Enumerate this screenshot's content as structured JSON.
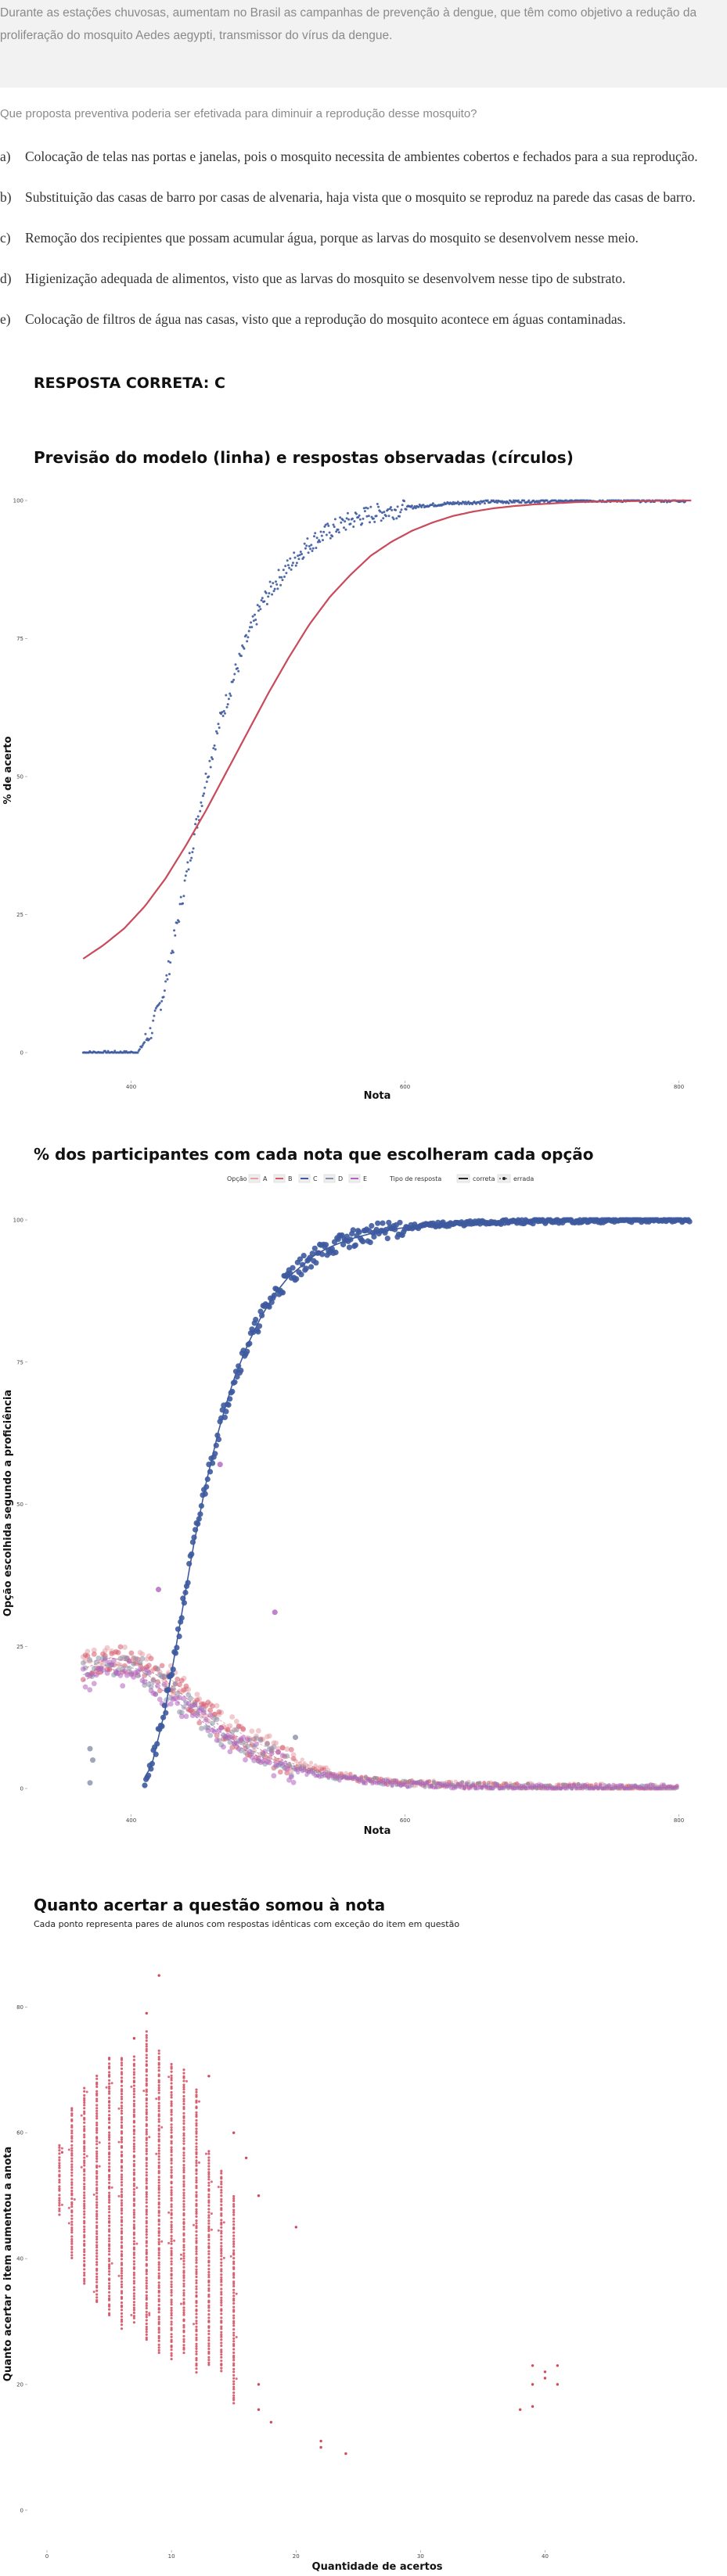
{
  "context": {
    "line1": "Durante as estações chuvosas, aumentam no Brasil as campanhas de prevenção à dengue, que têm como objetivo a redução da",
    "line2": "proliferação do mosquito Aedes aegypti, transmissor do vírus da dengue."
  },
  "question": "Que proposta preventiva poderia ser efetivada para diminuir a reprodução desse mosquito?",
  "alternatives": [
    {
      "letter": "a)",
      "text": "Colocação de telas nas portas e janelas, pois o mosquito necessita de ambientes cobertos e fechados para a sua reprodução."
    },
    {
      "letter": "b)",
      "text": "Substituição das casas de barro por casas de alvenaria, haja vista que o mosquito se reproduz na parede das casas de barro."
    },
    {
      "letter": "c)",
      "text": "Remoção dos recipientes que possam acumular água, porque as larvas do mosquito se desenvolvem nesse meio."
    },
    {
      "letter": "d)",
      "text": "Higienização adequada de alimentos, visto que as larvas do mosquito se desenvolvem nesse tipo de substrato."
    },
    {
      "letter": "e)",
      "text": "Colocação de filtros de água nas casas, visto que a reprodução do mosquito acontece em águas contaminadas."
    }
  ],
  "answer": "RESPOSTA CORRETA: C",
  "chart_data": [
    {
      "type": "scatter",
      "title": "Previsão do modelo (linha) e respostas observadas (círculos)",
      "xlabel": "Nota",
      "ylabel": "% de acerto",
      "xlim": [
        350,
        810
      ],
      "ylim": [
        0,
        100
      ],
      "xticks": [
        "400",
        "600",
        "800"
      ],
      "yticks": [
        "0",
        "25",
        "50",
        "75",
        "100"
      ],
      "colors": {
        "observed": "#3e5a9e",
        "model": "#c94a5a"
      },
      "series": [
        {
          "name": "",
          "kind": "points",
          "x": [
            365,
            375,
            385,
            395,
            405,
            415,
            425,
            435,
            445,
            455,
            465,
            475,
            485,
            495,
            505,
            515,
            525,
            535,
            545,
            555,
            565,
            575,
            585,
            595,
            605,
            615,
            625,
            635,
            645,
            655,
            665,
            675,
            685,
            695,
            705,
            715,
            725,
            735,
            745,
            755,
            765,
            775,
            785,
            795,
            805
          ],
          "values": [
            0,
            0,
            0,
            0,
            0,
            4,
            12,
            25,
            38,
            50,
            60,
            68,
            75,
            81,
            85,
            88,
            91,
            93,
            94.5,
            95.8,
            96.8,
            97.5,
            98,
            98.5,
            98.8,
            99.1,
            99.3,
            99.5,
            99.6,
            99.7,
            99.8,
            99.8,
            99.9,
            99.9,
            99.9,
            100,
            100,
            100,
            100,
            100,
            100,
            100,
            100,
            100,
            100
          ]
        },
        {
          "name": "",
          "kind": "line",
          "x": [
            365,
            380,
            395,
            410,
            425,
            440,
            455,
            470,
            485,
            500,
            515,
            530,
            545,
            560,
            575,
            590,
            605,
            620,
            635,
            650,
            665,
            680,
            695,
            710,
            725,
            740,
            755,
            770,
            785,
            800,
            810
          ],
          "values": [
            17,
            19.5,
            22.5,
            26.5,
            31.5,
            37.5,
            44,
            51,
            58,
            65,
            71.5,
            77.5,
            82.5,
            86.5,
            90,
            92.5,
            94.5,
            96,
            97.2,
            98,
            98.6,
            99,
            99.3,
            99.5,
            99.7,
            99.8,
            99.85,
            99.9,
            99.95,
            100,
            100
          ]
        }
      ]
    },
    {
      "type": "scatter",
      "title": "% dos participantes com cada nota que escolheram cada opção",
      "xlabel": "Nota",
      "ylabel": "Opção escolhida segundo a proficiência",
      "xlim": [
        350,
        810
      ],
      "ylim": [
        0,
        100
      ],
      "xticks": [
        "400",
        "600",
        "800"
      ],
      "yticks": [
        "0",
        "25",
        "50",
        "75",
        "100"
      ],
      "legend": {
        "placement": "top",
        "option_title": "Opção",
        "options": [
          "A",
          "B",
          "C",
          "D",
          "E"
        ],
        "type_title": "Tipo de resposta",
        "types": [
          "correta",
          "errada"
        ]
      },
      "colors": {
        "A": "#e8a0a8",
        "B": "#d65a6a",
        "C": "#3e5a9e",
        "D": "#8a8fa8",
        "E": "#b062c0"
      },
      "series": [
        {
          "name": "C",
          "x": [
            365,
            375,
            385,
            395,
            405,
            415,
            425,
            435,
            445,
            455,
            465,
            475,
            485,
            495,
            505,
            515,
            525,
            535,
            545,
            555,
            565,
            575,
            585,
            595,
            605,
            625,
            645,
            665,
            685,
            705,
            725,
            745,
            765,
            785,
            805
          ],
          "values": [
            0,
            0,
            0,
            0,
            0,
            4,
            14,
            28,
            42,
            54,
            64,
            72,
            78,
            83,
            87,
            90,
            92,
            94,
            95.2,
            96.2,
            97,
            97.6,
            98.1,
            98.5,
            98.8,
            99.2,
            99.4,
            99.6,
            99.7,
            99.8,
            99.9,
            99.9,
            100,
            100,
            100
          ]
        },
        {
          "name": "A",
          "x": [
            365,
            385,
            405,
            425,
            445,
            465,
            485,
            505,
            525,
            545,
            565,
            585,
            605,
            645,
            685,
            725,
            765,
            800
          ],
          "values": [
            22,
            23,
            22,
            20,
            16,
            12,
            9,
            6.5,
            4.5,
            3,
            2,
            1.5,
            1,
            0.6,
            0.4,
            0.3,
            0.2,
            0.1
          ]
        },
        {
          "name": "B",
          "x": [
            365,
            385,
            405,
            425,
            445,
            465,
            485,
            505,
            525,
            545,
            565,
            585,
            605,
            645,
            685,
            725,
            765,
            800
          ],
          "values": [
            21,
            23,
            22,
            19,
            15,
            11,
            8,
            5.5,
            3.8,
            2.6,
            1.8,
            1.2,
            0.9,
            0.5,
            0.3,
            0.2,
            0.1,
            0.1
          ]
        },
        {
          "name": "D",
          "x": [
            365,
            385,
            405,
            425,
            445,
            465,
            485,
            505,
            525,
            545,
            565,
            585,
            605,
            645,
            685,
            725,
            765,
            800
          ],
          "values": [
            20,
            22,
            21,
            18,
            14,
            10,
            7,
            5,
            3.4,
            2.3,
            1.6,
            1.1,
            0.8,
            0.5,
            0.3,
            0.2,
            0.1,
            0.1
          ]
        },
        {
          "name": "E",
          "x": [
            365,
            385,
            405,
            425,
            445,
            465,
            485,
            505,
            525,
            545,
            565,
            585,
            605,
            645,
            685,
            725,
            765,
            800
          ],
          "values": [
            19,
            21,
            20,
            17,
            13,
            9.5,
            6.5,
            4.5,
            3,
            2,
            1.4,
            1,
            0.7,
            0.4,
            0.2,
            0.1,
            0.1,
            0.1
          ]
        }
      ]
    },
    {
      "type": "scatter",
      "title": "Quanto acertar a questão somou à nota",
      "subtitle": "Cada ponto representa pares de alunos com respostas idênticas com exceção do item em questão",
      "xlabel": "Quantidade de acertos",
      "ylabel": "Quanto acertar o item aumentou a anota",
      "xlim": [
        0,
        46
      ],
      "ylim": [
        -2,
        87
      ],
      "xticks": [
        "0",
        "10",
        "20",
        "30",
        "40"
      ],
      "yticks": [
        "0",
        "20",
        "40",
        "60",
        "80"
      ],
      "colors": {
        "points": "#d14a5e"
      },
      "columns": [
        {
          "x": 1,
          "min": 47,
          "max": 58
        },
        {
          "x": 2,
          "min": 40,
          "max": 64
        },
        {
          "x": 3,
          "min": 36,
          "max": 67
        },
        {
          "x": 4,
          "min": 33,
          "max": 69
        },
        {
          "x": 5,
          "min": 31,
          "max": 72
        },
        {
          "x": 6,
          "min": 29,
          "max": 72
        },
        {
          "x": 7,
          "min": 30,
          "max": 72
        },
        {
          "x": 8,
          "min": 27,
          "max": 76
        },
        {
          "x": 9,
          "min": 25,
          "max": 73
        },
        {
          "x": 10,
          "min": 24,
          "max": 71
        },
        {
          "x": 11,
          "min": 25,
          "max": 70
        },
        {
          "x": 12,
          "min": 22,
          "max": 67
        },
        {
          "x": 13,
          "min": 23,
          "max": 57
        },
        {
          "x": 14,
          "min": 22,
          "max": 54
        },
        {
          "x": 15,
          "min": 17,
          "max": 50
        }
      ],
      "points": [
        [
          9,
          85
        ],
        [
          8,
          79
        ],
        [
          7,
          75
        ],
        [
          13,
          69
        ],
        [
          15,
          60
        ],
        [
          16,
          56
        ],
        [
          17,
          50
        ],
        [
          17,
          20
        ],
        [
          17,
          16
        ],
        [
          18,
          14
        ],
        [
          20,
          45
        ],
        [
          22,
          11
        ],
        [
          22,
          10
        ],
        [
          24,
          9
        ],
        [
          38,
          16
        ],
        [
          39,
          16.5
        ],
        [
          39,
          23
        ],
        [
          39,
          20
        ],
        [
          40,
          21
        ],
        [
          40,
          22
        ],
        [
          41,
          23
        ],
        [
          41,
          20
        ]
      ]
    }
  ]
}
